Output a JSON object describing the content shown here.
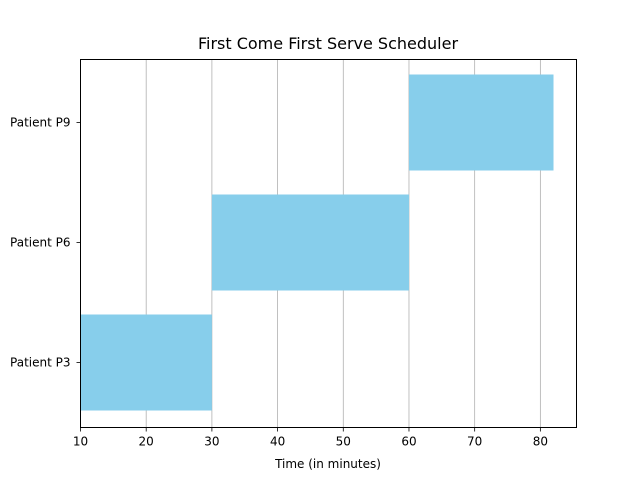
{
  "chart_data": {
    "type": "bar",
    "orientation": "horizontal",
    "title": "First Come First Serve Scheduler",
    "xlabel": "Time (in minutes)",
    "ylabel": "",
    "xlim": [
      10,
      85.5
    ],
    "xticks": [
      10,
      20,
      30,
      40,
      50,
      60,
      70,
      80
    ],
    "grid": "x-axis vertical lines",
    "categories": [
      "Patient P3",
      "Patient P6",
      "Patient P9"
    ],
    "bars": [
      {
        "category": "Patient P3",
        "start": 10,
        "end": 30
      },
      {
        "category": "Patient P6",
        "start": 30,
        "end": 60
      },
      {
        "category": "Patient P9",
        "start": 60,
        "end": 82
      }
    ],
    "bar_color": "#87CEEB"
  }
}
